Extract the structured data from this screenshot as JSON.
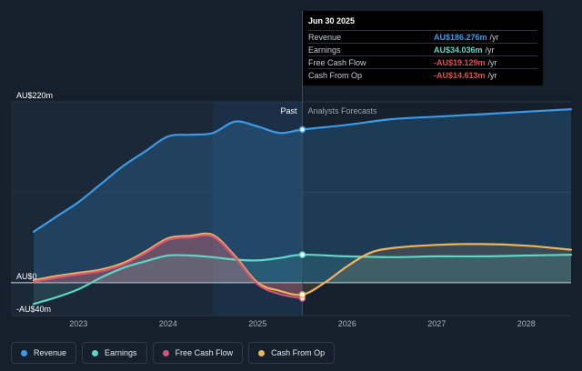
{
  "chart_data": {
    "type": "area",
    "y_unit": "AU$",
    "ylim": [
      -40,
      220
    ],
    "y_ticks": [
      {
        "value": 220,
        "label": "AU$220m"
      },
      {
        "value": 0,
        "label": "AU$0"
      },
      {
        "value": -40,
        "label": "-AU$40m"
      }
    ],
    "x_ticks": [
      "2023",
      "2024",
      "2025",
      "2026",
      "2027",
      "2028"
    ],
    "x_range": [
      2022.5,
      2028.5
    ],
    "divider_x": 2025.5,
    "past_label": "Past",
    "forecast_label": "Analysts Forecasts",
    "series": [
      {
        "name": "Revenue",
        "color": "#3a9be8",
        "points": [
          [
            2022.5,
            62
          ],
          [
            2022.75,
            80
          ],
          [
            2023.0,
            98
          ],
          [
            2023.25,
            120
          ],
          [
            2023.5,
            142
          ],
          [
            2023.75,
            160
          ],
          [
            2024.0,
            178
          ],
          [
            2024.25,
            180
          ],
          [
            2024.5,
            182
          ],
          [
            2024.75,
            196
          ],
          [
            2025.0,
            190
          ],
          [
            2025.25,
            182
          ],
          [
            2025.5,
            186.3
          ],
          [
            2026.0,
            192
          ],
          [
            2026.5,
            199
          ],
          [
            2027.0,
            202
          ],
          [
            2027.5,
            205
          ],
          [
            2028.0,
            208
          ],
          [
            2028.5,
            211
          ]
        ]
      },
      {
        "name": "Earnings",
        "color": "#5ed6c7",
        "points": [
          [
            2022.5,
            -26
          ],
          [
            2022.75,
            -18
          ],
          [
            2023.0,
            -8
          ],
          [
            2023.25,
            6
          ],
          [
            2023.5,
            18
          ],
          [
            2023.75,
            26
          ],
          [
            2024.0,
            33
          ],
          [
            2024.25,
            33
          ],
          [
            2024.5,
            31
          ],
          [
            2024.75,
            28
          ],
          [
            2025.0,
            27
          ],
          [
            2025.25,
            30
          ],
          [
            2025.5,
            34.0
          ],
          [
            2026.0,
            32
          ],
          [
            2026.5,
            31
          ],
          [
            2027.0,
            32
          ],
          [
            2027.5,
            32
          ],
          [
            2028.0,
            33
          ],
          [
            2028.5,
            34
          ]
        ]
      },
      {
        "name": "Free Cash Flow",
        "color": "#d2567c",
        "points": [
          [
            2022.5,
            1
          ],
          [
            2022.75,
            6
          ],
          [
            2023.0,
            10
          ],
          [
            2023.25,
            14
          ],
          [
            2023.5,
            22
          ],
          [
            2023.75,
            36
          ],
          [
            2024.0,
            52
          ],
          [
            2024.25,
            55
          ],
          [
            2024.5,
            56
          ],
          [
            2024.75,
            30
          ],
          [
            2025.0,
            -2
          ],
          [
            2025.25,
            -14
          ],
          [
            2025.5,
            -19.1
          ]
        ]
      },
      {
        "name": "Cash From Op",
        "color": "#f0b45a",
        "points": [
          [
            2022.5,
            3
          ],
          [
            2022.75,
            8
          ],
          [
            2023.0,
            12
          ],
          [
            2023.25,
            16
          ],
          [
            2023.5,
            24
          ],
          [
            2023.75,
            38
          ],
          [
            2024.0,
            54
          ],
          [
            2024.25,
            57
          ],
          [
            2024.5,
            58
          ],
          [
            2024.75,
            32
          ],
          [
            2025.0,
            0
          ],
          [
            2025.25,
            -10
          ],
          [
            2025.5,
            -14.6
          ],
          [
            2025.75,
            0
          ],
          [
            2026.0,
            20
          ],
          [
            2026.25,
            36
          ],
          [
            2026.5,
            42
          ],
          [
            2027.0,
            46
          ],
          [
            2027.5,
            47
          ],
          [
            2028.0,
            45
          ],
          [
            2028.5,
            40
          ]
        ]
      }
    ]
  },
  "tooltip": {
    "title": "Jun 30 2025",
    "rows": [
      {
        "label": "Revenue",
        "value": "AU$186.276m",
        "unit": "/yr",
        "color": "#3a9be8"
      },
      {
        "label": "Earnings",
        "value": "AU$34.036m",
        "unit": "/yr",
        "color": "#5ed6c7"
      },
      {
        "label": "Free Cash Flow",
        "value": "-AU$19.129m",
        "unit": "/yr",
        "color": "#e54b4b"
      },
      {
        "label": "Cash From Op",
        "value": "-AU$14.613m",
        "unit": "/yr",
        "color": "#e54b4b"
      }
    ]
  },
  "legend": [
    {
      "label": "Revenue",
      "color": "#3a9be8"
    },
    {
      "label": "Earnings",
      "color": "#5ed6c7"
    },
    {
      "label": "Free Cash Flow",
      "color": "#d2567c"
    },
    {
      "label": "Cash From Op",
      "color": "#f0b45a"
    }
  ]
}
